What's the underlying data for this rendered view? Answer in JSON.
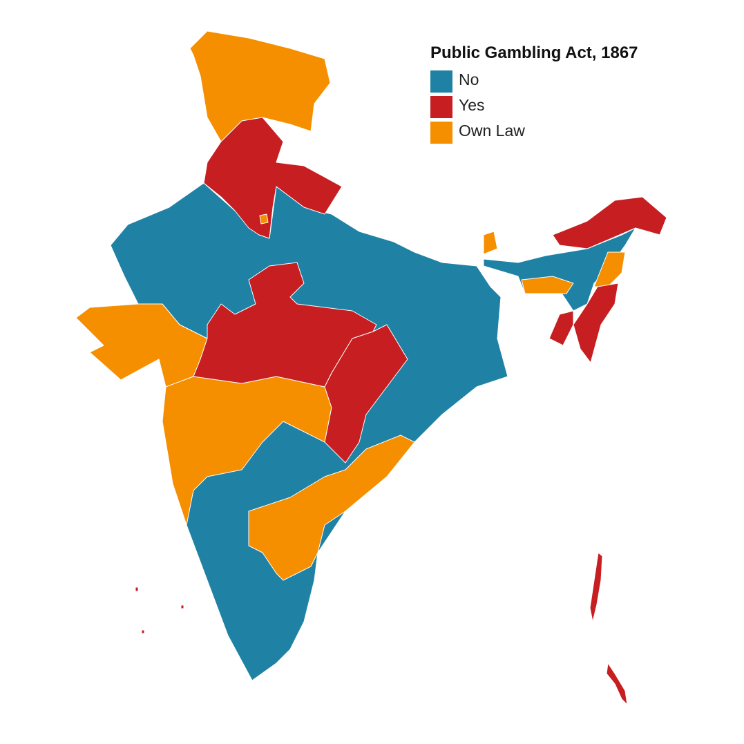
{
  "legend": {
    "title": "Public Gambling Act, 1867",
    "items": [
      {
        "label": "No",
        "color": "#1f82a5"
      },
      {
        "label": "Yes",
        "color": "#c61e21"
      },
      {
        "label": "Own Law",
        "color": "#f68f00"
      }
    ]
  }
}
